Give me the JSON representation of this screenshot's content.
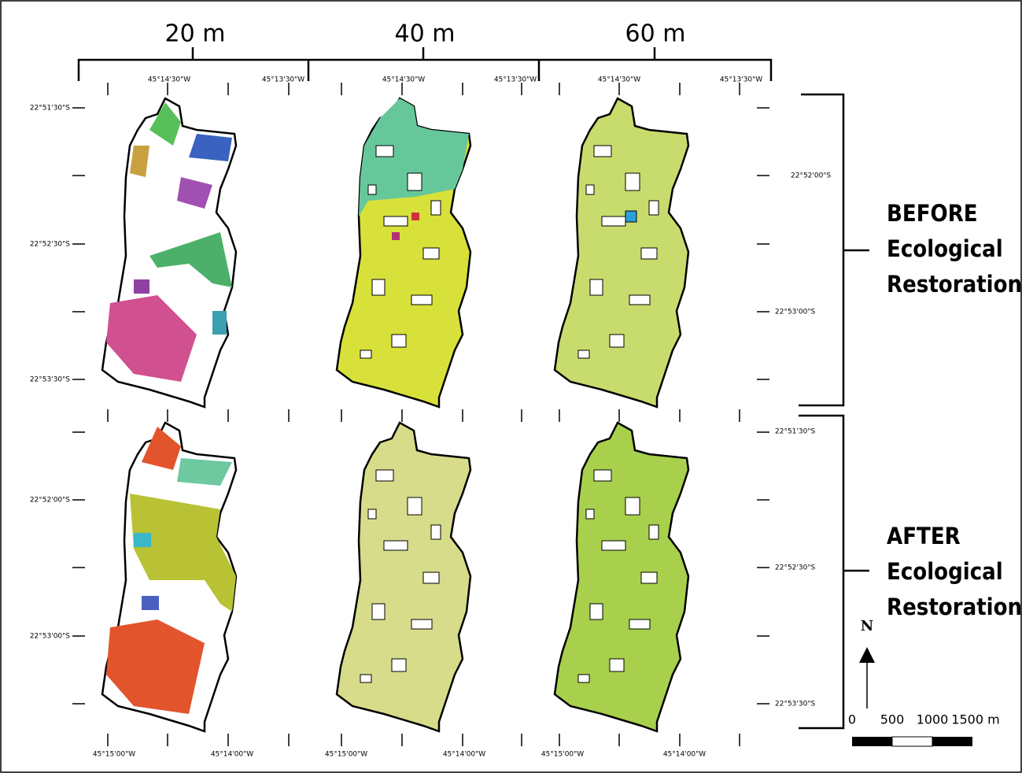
{
  "columns": [
    "20 m",
    "40 m",
    "60 m"
  ],
  "top_lon_labels": [
    [
      "45°14'30\"W",
      "45°13'30\"W"
    ],
    [
      "45°14'30\"W",
      "45°13'30\"W"
    ],
    [
      "45°14'30\"W",
      "45°13'30\"W"
    ]
  ],
  "bottom_lon_labels": [
    [
      "45°15'00\"W",
      "45°14'00\"W"
    ],
    [
      "45°15'00\"W",
      "45°14'00\"W"
    ],
    [
      "45°15'00\"W",
      "45°14'00\"W"
    ]
  ],
  "left_lat_top": [
    "22°51'30\"S",
    "22°52'30\"S",
    "22°53'30\"S"
  ],
  "left_lat_bottom": [
    "22°52'00\"S",
    "22°53'00\"S"
  ],
  "right_lat_top": [
    "22°52'00\"S",
    "22°53'00\"S"
  ],
  "right_lat_bottom": [
    "22°51'30\"S",
    "22°52'30\"S",
    "22°53'30\"S"
  ],
  "rows": [
    [
      "BEFORE",
      "Ecological",
      "Restoration"
    ],
    [
      "AFTER",
      "Ecological",
      "Restoration"
    ]
  ],
  "north": "N",
  "scale": [
    "0",
    "500",
    "1000",
    "1500 m"
  ]
}
